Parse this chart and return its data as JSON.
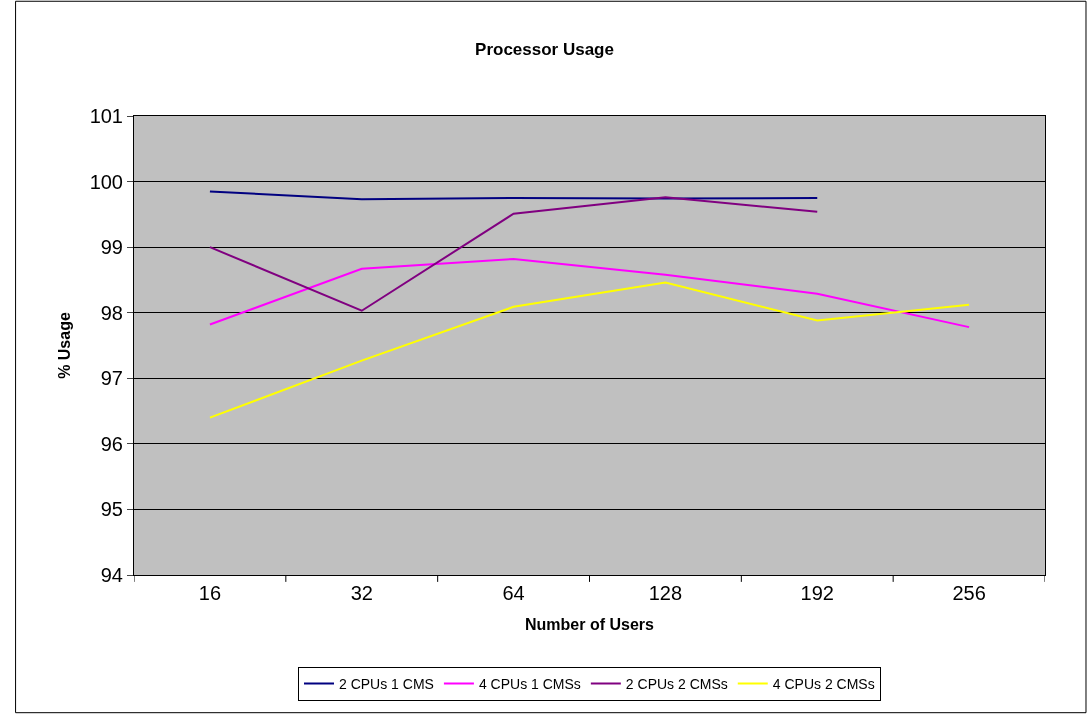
{
  "chart_data": {
    "type": "line",
    "title": "Processor Usage",
    "xlabel": "Number of Users",
    "ylabel": "% Usage",
    "categories": [
      "16",
      "32",
      "64",
      "128",
      "192",
      "256"
    ],
    "series": [
      {
        "name": "2 CPUs 1 CMS",
        "color": "#000080",
        "values": [
          99.85,
          99.73,
          99.75,
          99.74,
          99.75,
          null
        ]
      },
      {
        "name": "4 CPUs 1 CMSs",
        "color": "#ff00ff",
        "values": [
          97.82,
          98.67,
          98.82,
          98.58,
          98.29,
          97.78
        ]
      },
      {
        "name": "2 CPUs 2 CMSs",
        "color": "#800080",
        "values": [
          99.0,
          98.03,
          99.51,
          99.76,
          99.54,
          null
        ]
      },
      {
        "name": "4 CPUs 2 CMSs",
        "color": "#ffff00",
        "values": [
          96.4,
          97.27,
          98.09,
          98.46,
          97.88,
          98.12
        ]
      }
    ],
    "ylim": [
      94,
      101
    ],
    "yticks": [
      94,
      95,
      96,
      97,
      98,
      99,
      100,
      101
    ],
    "grid": "y",
    "legend": "bottom",
    "marker": "none",
    "line_style": "solid"
  }
}
